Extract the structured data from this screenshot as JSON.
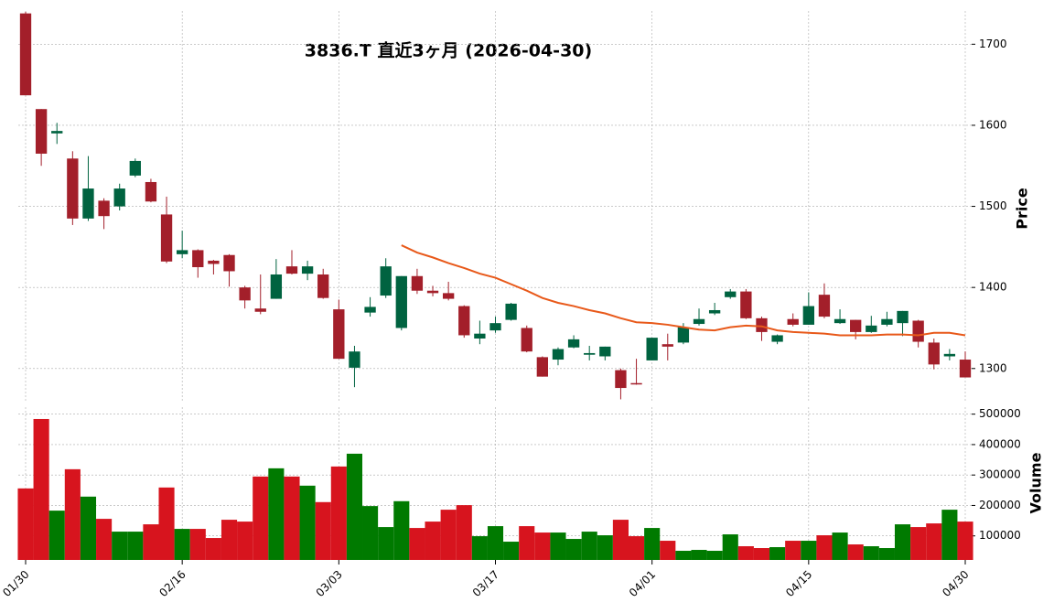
{
  "chart_data": [
    {
      "type": "candlestick",
      "title": "3836.T  直近3ヶ月  (2026-04-30)",
      "ylabel": "Price",
      "categories": [
        "01/30",
        null,
        null,
        null,
        null,
        null,
        null,
        null,
        null,
        null,
        "02/16",
        null,
        null,
        null,
        null,
        null,
        null,
        null,
        null,
        null,
        "03/03",
        null,
        null,
        null,
        null,
        null,
        null,
        null,
        null,
        null,
        "03/17",
        null,
        null,
        null,
        null,
        null,
        null,
        null,
        null,
        null,
        "04/01",
        null,
        null,
        null,
        null,
        null,
        null,
        null,
        null,
        null,
        "04/15",
        null,
        null,
        null,
        null,
        null,
        null,
        null,
        null,
        null,
        "04/30"
      ],
      "open": [
        1738,
        1620,
        1590,
        1559,
        1485,
        1507,
        1500,
        1538,
        1530,
        1490,
        1441,
        1446,
        1433,
        1440,
        1400,
        1374,
        1386,
        1426,
        1417,
        1416,
        1373,
        1301,
        1369,
        1390,
        1350,
        1414,
        1396,
        1393,
        1377,
        1337,
        1347,
        1360,
        1350,
        1314,
        1311,
        1326,
        1317,
        1315,
        1298,
        1282,
        1310,
        1330,
        1332,
        1355,
        1368,
        1388,
        1395,
        1362,
        1333,
        1361,
        1354,
        1391,
        1356,
        1360,
        1345,
        1354,
        1356,
        1359,
        1332,
        1315,
        1311
      ],
      "high": [
        1740,
        1620,
        1603,
        1568,
        1562,
        1510,
        1528,
        1559,
        1534,
        1512,
        1470,
        1447,
        1434,
        1441,
        1402,
        1416,
        1435,
        1446,
        1433,
        1423,
        1385,
        1328,
        1388,
        1436,
        1414,
        1423,
        1402,
        1407,
        1378,
        1359,
        1364,
        1381,
        1353,
        1315,
        1326,
        1341,
        1328,
        1327,
        1300,
        1312,
        1338,
        1343,
        1356,
        1374,
        1381,
        1398,
        1398,
        1364,
        1342,
        1368,
        1394,
        1405,
        1373,
        1360,
        1365,
        1370,
        1371,
        1360,
        1337,
        1324,
        1321
      ],
      "low": [
        1637,
        1550,
        1577,
        1477,
        1482,
        1472,
        1495,
        1536,
        1505,
        1430,
        1436,
        1412,
        1416,
        1401,
        1374,
        1367,
        1386,
        1416,
        1409,
        1386,
        1312,
        1277,
        1364,
        1387,
        1347,
        1392,
        1389,
        1384,
        1338,
        1330,
        1344,
        1359,
        1320,
        1290,
        1304,
        1325,
        1310,
        1310,
        1262,
        1280,
        1310,
        1310,
        1330,
        1353,
        1366,
        1386,
        1361,
        1334,
        1330,
        1352,
        1354,
        1362,
        1355,
        1336,
        1344,
        1352,
        1340,
        1326,
        1299,
        1310,
        1289
      ],
      "close": [
        1637,
        1565,
        1593,
        1485,
        1522,
        1488,
        1522,
        1556,
        1506,
        1432,
        1446,
        1425,
        1429,
        1420,
        1384,
        1370,
        1416,
        1417,
        1426,
        1387,
        1312,
        1321,
        1376,
        1426,
        1414,
        1396,
        1393,
        1386,
        1341,
        1343,
        1356,
        1380,
        1321,
        1290,
        1324,
        1336,
        1319,
        1327,
        1276,
        1281,
        1338,
        1327,
        1351,
        1361,
        1372,
        1395,
        1362,
        1345,
        1341,
        1354,
        1377,
        1364,
        1361,
        1345,
        1353,
        1361,
        1371,
        1333,
        1305,
        1318,
        1289
      ],
      "up_color": "#006340",
      "down_color": "#a31f2a",
      "series": [
        {
          "color": "#e8591a",
          "values": [
            null,
            null,
            null,
            null,
            null,
            null,
            null,
            null,
            null,
            null,
            null,
            null,
            null,
            null,
            null,
            null,
            null,
            null,
            null,
            null,
            null,
            null,
            null,
            null,
            1452,
            1443,
            1437,
            1430,
            1424,
            1417,
            1412,
            1404,
            1396,
            1387,
            1381,
            1377,
            1372,
            1368,
            1362,
            1357,
            1356,
            1354,
            1351,
            1348,
            1347,
            1351,
            1353,
            1352,
            1347,
            1345,
            1344,
            1343,
            1341,
            1341,
            1341,
            1342,
            1342,
            1341,
            1344,
            1344,
            1341
          ]
        }
      ],
      "ylim": [
        1258,
        1741
      ],
      "yticks": [
        1300,
        1400,
        1500,
        1600,
        1700
      ],
      "grid": true
    },
    {
      "type": "bar",
      "ylabel": "Volume",
      "values": [
        256000,
        484000,
        183000,
        319000,
        229000,
        156000,
        114000,
        114000,
        138000,
        259000,
        123000,
        123000,
        93000,
        153000,
        147000,
        295000,
        322000,
        295000,
        265000,
        211000,
        328000,
        370000,
        198000,
        129000,
        214000,
        126000,
        147000,
        186000,
        201000,
        99000,
        132000,
        81000,
        132000,
        111000,
        111000,
        90000,
        114000,
        102000,
        153000,
        99000,
        126000,
        84000,
        51000,
        54000,
        51000,
        105000,
        66000,
        60000,
        63000,
        84000,
        84000,
        102000,
        111000,
        72000,
        66000,
        60000,
        138000,
        129000,
        141000,
        186000,
        147000
      ],
      "up_color": "#007a00",
      "down_color": "#d7141e",
      "ylim": [
        21000,
        523000
      ],
      "yticks": [
        100000,
        200000,
        300000,
        400000,
        500000
      ],
      "grid": true
    }
  ]
}
